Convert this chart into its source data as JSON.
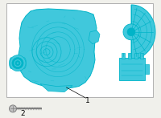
{
  "bg_color": "#f0f0eb",
  "box_color": "#ffffff",
  "box_border": "#b0b0b0",
  "teal": "#00b4c8",
  "teal_light": "#50d0e0",
  "teal_fill": "#40c8dc",
  "gray": "#808080",
  "gray_light": "#c0c0c0",
  "label1": "1",
  "label2": "2",
  "fig_width": 2.0,
  "fig_height": 1.47,
  "dpi": 100
}
